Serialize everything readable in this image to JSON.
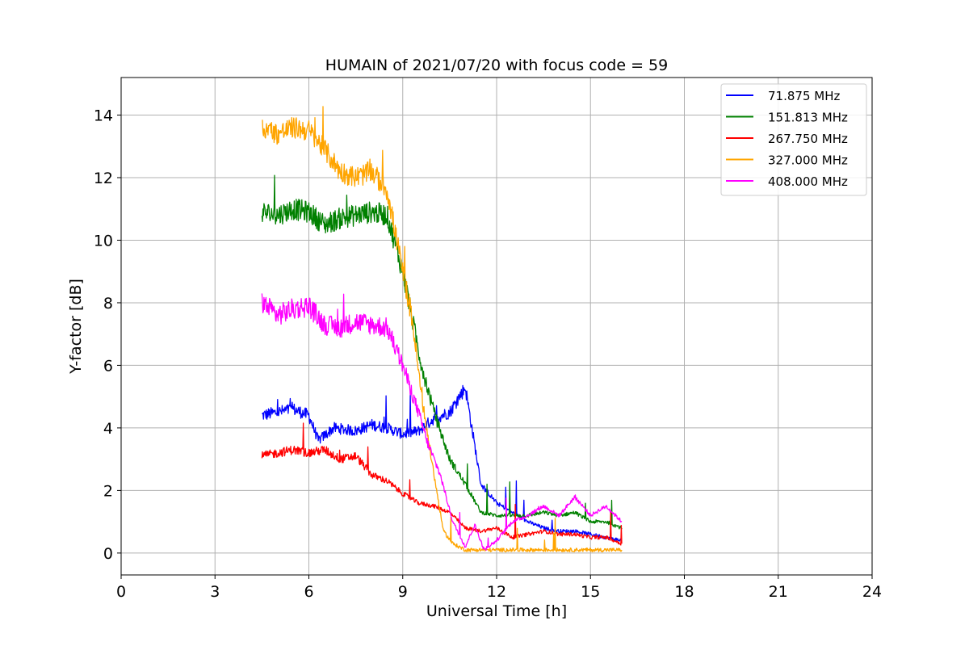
{
  "chart_data": {
    "type": "line",
    "title": "HUMAIN of 2021/07/20 with focus code = 59",
    "xlabel": "Universal Time [h]",
    "ylabel": "Y-factor [dB]",
    "xlim": [
      0,
      24
    ],
    "ylim": [
      -0.7,
      15.2
    ],
    "xticks": [
      0,
      3,
      6,
      9,
      12,
      15,
      18,
      21,
      24
    ],
    "yticks": [
      0,
      2,
      4,
      6,
      8,
      10,
      12,
      14
    ],
    "grid": true,
    "legend_position": "top-right",
    "series": [
      {
        "name": " 71.875 MHz",
        "color": "#0000ff",
        "x": [
          4.5,
          5.0,
          5.5,
          6.0,
          6.3,
          6.8,
          7.5,
          8.0,
          8.5,
          9.0,
          9.5,
          10.0,
          10.5,
          11.0,
          11.5,
          12.0,
          12.5,
          13.0,
          13.5,
          14.0,
          14.5,
          15.0,
          15.5,
          16.0
        ],
        "y": [
          4.4,
          4.5,
          4.6,
          4.4,
          3.6,
          4.0,
          3.9,
          4.1,
          4.0,
          3.8,
          3.9,
          4.3,
          4.5,
          5.3,
          2.2,
          1.6,
          1.3,
          1.0,
          0.8,
          0.7,
          0.7,
          0.6,
          0.5,
          0.4
        ]
      },
      {
        "name": "151.813 MHz",
        "color": "#008000",
        "x": [
          4.5,
          5.0,
          5.5,
          6.0,
          6.5,
          7.0,
          7.5,
          8.0,
          8.5,
          9.0,
          9.3,
          9.6,
          10.0,
          10.5,
          11.0,
          11.5,
          12.0,
          12.5,
          13.0,
          13.5,
          14.0,
          14.5,
          15.0,
          15.5,
          16.0
        ],
        "y": [
          10.9,
          10.8,
          11.0,
          10.9,
          10.5,
          10.7,
          10.8,
          10.9,
          10.8,
          9.0,
          7.5,
          6.0,
          4.5,
          3.0,
          2.2,
          1.3,
          1.2,
          1.2,
          1.2,
          1.3,
          1.2,
          1.3,
          1.0,
          1.0,
          0.8
        ]
      },
      {
        "name": "267.750 MHz",
        "color": "#ff0000",
        "x": [
          4.5,
          5.0,
          5.5,
          6.0,
          6.5,
          7.0,
          7.5,
          8.0,
          8.5,
          9.0,
          9.5,
          10.0,
          10.5,
          11.0,
          11.5,
          12.0,
          12.5,
          13.0,
          13.5,
          14.0,
          14.5,
          15.0,
          15.5,
          16.0
        ],
        "y": [
          3.1,
          3.2,
          3.3,
          3.2,
          3.3,
          3.0,
          3.1,
          2.5,
          2.3,
          1.9,
          1.6,
          1.5,
          1.3,
          0.8,
          0.7,
          0.8,
          0.5,
          0.6,
          0.7,
          0.6,
          0.6,
          0.5,
          0.5,
          0.3
        ]
      },
      {
        "name": "327.000 MHz",
        "color": "#ffa500",
        "x": [
          4.5,
          5.0,
          5.5,
          6.0,
          6.5,
          7.0,
          7.5,
          8.0,
          8.5,
          9.0,
          9.3,
          9.6,
          10.0,
          10.3,
          10.6,
          11.0,
          11.5,
          12.0,
          13.0,
          14.0,
          15.0,
          16.0
        ],
        "y": [
          13.6,
          13.4,
          13.6,
          13.5,
          12.9,
          12.2,
          12.0,
          12.2,
          11.6,
          9.0,
          7.5,
          5.0,
          2.5,
          0.7,
          0.3,
          0.1,
          0.1,
          0.1,
          0.1,
          0.1,
          0.1,
          0.1
        ]
      },
      {
        "name": "408.000 MHz",
        "color": "#ff00ff",
        "x": [
          4.5,
          5.0,
          5.5,
          6.0,
          6.5,
          7.0,
          7.5,
          8.0,
          8.5,
          9.0,
          9.5,
          9.8,
          10.2,
          10.6,
          11.0,
          11.3,
          11.6,
          12.0,
          12.5,
          13.0,
          13.5,
          14.0,
          14.5,
          15.0,
          15.5,
          16.0
        ],
        "y": [
          8.0,
          7.6,
          7.8,
          7.9,
          7.3,
          7.2,
          7.4,
          7.3,
          7.2,
          6.0,
          4.5,
          3.5,
          2.5,
          1.0,
          0.2,
          0.9,
          0.1,
          0.4,
          1.0,
          1.2,
          1.5,
          1.2,
          1.8,
          1.2,
          1.5,
          1.0
        ]
      }
    ]
  }
}
